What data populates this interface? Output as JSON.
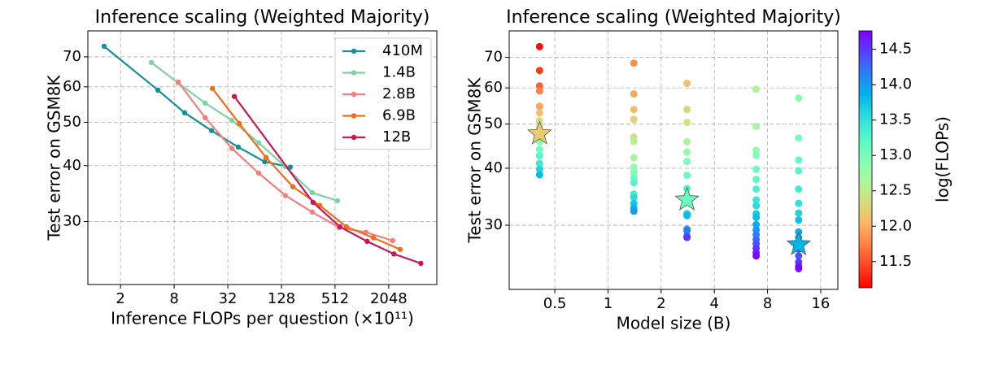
{
  "chart_data": [
    {
      "type": "line",
      "title": "Inference scaling (Weighted Majority)",
      "xlabel": "Inference FLOPs per question (×10¹¹)",
      "ylabel": "Test error on GSM8K",
      "xscale": "log",
      "yscale": "log",
      "xlim": [
        0.86,
        7100
      ],
      "ylim": [
        21.7,
        80
      ],
      "xticks": [
        2,
        8,
        32,
        128,
        512,
        2048
      ],
      "yticks": [
        30,
        40,
        50,
        60,
        70
      ],
      "grid": true,
      "legend": "upper right",
      "series": [
        {
          "name": "410M",
          "color": "#13919a",
          "x": [
            1.31,
            5.26,
            10.5,
            21,
            42,
            83,
            161
          ],
          "values": [
            73.9,
            59.0,
            52.5,
            47.9,
            44.0,
            40.8,
            39.7
          ]
        },
        {
          "name": "1.4B",
          "color": "#7ed3a1",
          "x": [
            4.44,
            8.89,
            17.8,
            35.6,
            71,
            142,
            284,
            545
          ],
          "values": [
            68.0,
            61.2,
            55.2,
            50.5,
            45.0,
            39.8,
            34.8,
            33.4
          ]
        },
        {
          "name": "2.8B",
          "color": "#f27f7c",
          "x": [
            8.9,
            17.8,
            35.6,
            71,
            142,
            284,
            568,
            1136,
            2272
          ],
          "values": [
            61.5,
            51.2,
            43.7,
            38.5,
            34.3,
            31.5,
            29.1,
            28.4,
            27.2
          ]
        },
        {
          "name": "6.9B",
          "color": "#f06e18",
          "x": [
            21.5,
            43,
            86,
            172,
            344,
            688,
            1376,
            2752
          ],
          "values": [
            59.5,
            49.7,
            41.7,
            35.9,
            32.6,
            29.2,
            27.6,
            26.0
          ]
        },
        {
          "name": "12B",
          "color": "#c8185a",
          "x": [
            37.9,
            290,
            581,
            1172,
            2342,
            4700
          ],
          "values": [
            57.1,
            33.1,
            29.2,
            27.1,
            25.4,
            24.2
          ]
        }
      ]
    },
    {
      "type": "scatter",
      "title": "Inference scaling (Weighted Majority)",
      "xlabel": "Model size (B)",
      "ylabel": "Test error on GSM8K",
      "xscale": "log",
      "yscale": "log",
      "xlim": [
        0.276,
        20
      ],
      "ylim": [
        21.7,
        80
      ],
      "xticks": [
        0.5,
        1,
        2,
        4,
        8,
        16
      ],
      "yticks": [
        30,
        40,
        50,
        60,
        70
      ],
      "grid": true,
      "cmap": "rainbow_r",
      "colorbar": {
        "label": "log(FLOPs)",
        "lim": [
          11.13,
          14.76
        ],
        "ticks": [
          11.5,
          {
            "value": 12,
            "label": "12.0"
          },
          12.5,
          {
            "value": 13,
            "label": "13.0"
          },
          13.5,
          {
            "value": 14,
            "label": "14.0"
          },
          14.5
        ]
      },
      "series": [
        {
          "x": [
            0.41,
            0.41,
            0.41,
            0.41,
            0.41,
            0.41,
            0.41,
            0.41,
            0.41,
            0.41,
            0.41,
            0.41,
            0.41,
            0.41,
            0.41
          ],
          "values": [
            73.9,
            65.5,
            60.6,
            59.1,
            54.7,
            52.9,
            50.8,
            49.2,
            47.2,
            45.7,
            44.0,
            42.6,
            41.0,
            39.8,
            38.7
          ],
          "c": [
            11.2,
            11.39,
            11.57,
            11.76,
            11.94,
            12.13,
            12.31,
            12.5,
            12.69,
            12.87,
            13.06,
            13.24,
            13.43,
            13.61,
            13.8
          ]
        },
        {
          "x": [
            1.4,
            1.4,
            1.4,
            1.4,
            1.4,
            1.4,
            1.4,
            1.4,
            1.4,
            1.4,
            1.4,
            1.4,
            1.4,
            1.4,
            1.4,
            1.4
          ],
          "values": [
            68.0,
            58.2,
            53.8,
            51.2,
            46.8,
            45.8,
            42.2,
            40.2,
            39.2,
            38.1,
            37.2,
            35.1,
            34.5,
            33.5,
            32.7,
            32.2
          ],
          "c": [
            11.8,
            11.95,
            12.09,
            12.24,
            12.39,
            12.53,
            12.68,
            12.83,
            12.97,
            13.12,
            13.27,
            13.41,
            13.56,
            13.71,
            13.85,
            14.0
          ]
        },
        {
          "x": [
            2.8,
            2.8,
            2.8,
            2.8,
            2.8,
            2.8,
            2.8,
            2.8,
            2.8,
            2.8,
            2.8,
            2.8,
            2.8,
            2.8,
            2.8
          ],
          "values": [
            61.4,
            53.8,
            50.4,
            45.7,
            43.4,
            41.4,
            38.6,
            36.1,
            34.2,
            31.8,
            31.5,
            29.4,
            29.2,
            28.4,
            28.2
          ],
          "c": [
            12.1,
            12.27,
            12.44,
            12.61,
            12.79,
            12.96,
            13.13,
            13.3,
            13.47,
            13.64,
            13.81,
            13.99,
            14.16,
            14.33,
            14.5
          ]
        },
        {
          "x": [
            6.9,
            6.9,
            6.9,
            6.9,
            6.9,
            6.9,
            6.9,
            6.9,
            6.9,
            6.9,
            6.9,
            6.9,
            6.9,
            6.9,
            6.9,
            6.9,
            6.9,
            6.9,
            6.9
          ],
          "values": [
            59.6,
            49.4,
            43.8,
            42.7,
            39.8,
            37.8,
            36.0,
            34.1,
            33.1,
            31.8,
            31.2,
            30.1,
            29.3,
            28.6,
            27.9,
            27.3,
            26.7,
            26.1,
            25.7
          ],
          "c": [
            12.6,
            12.72,
            12.84,
            12.96,
            13.08,
            13.2,
            13.32,
            13.44,
            13.56,
            13.68,
            13.79,
            13.91,
            14.03,
            14.15,
            14.27,
            14.39,
            14.51,
            14.63,
            14.75
          ]
        },
        {
          "x": [
            12,
            12,
            12,
            12,
            12,
            12,
            12,
            12,
            12,
            12,
            12,
            12,
            12,
            12,
            12,
            12
          ],
          "values": [
            57.0,
            46.6,
            41.7,
            39.5,
            36.0,
            33.5,
            31.9,
            30.8,
            29.0,
            28.2,
            27.3,
            26.6,
            25.7,
            24.9,
            24.4,
            24.1
          ],
          "c": [
            12.9,
            13.02,
            13.15,
            13.27,
            13.39,
            13.52,
            13.64,
            13.76,
            13.89,
            14.01,
            14.13,
            14.26,
            14.38,
            14.5,
            14.63,
            14.75
          ]
        }
      ],
      "stars": {
        "x": [
          0.41,
          2.8,
          12
        ],
        "values": [
          47.6,
          34.1,
          27.2
        ],
        "c": [
          12.2,
          13.1,
          13.85
        ]
      }
    }
  ]
}
